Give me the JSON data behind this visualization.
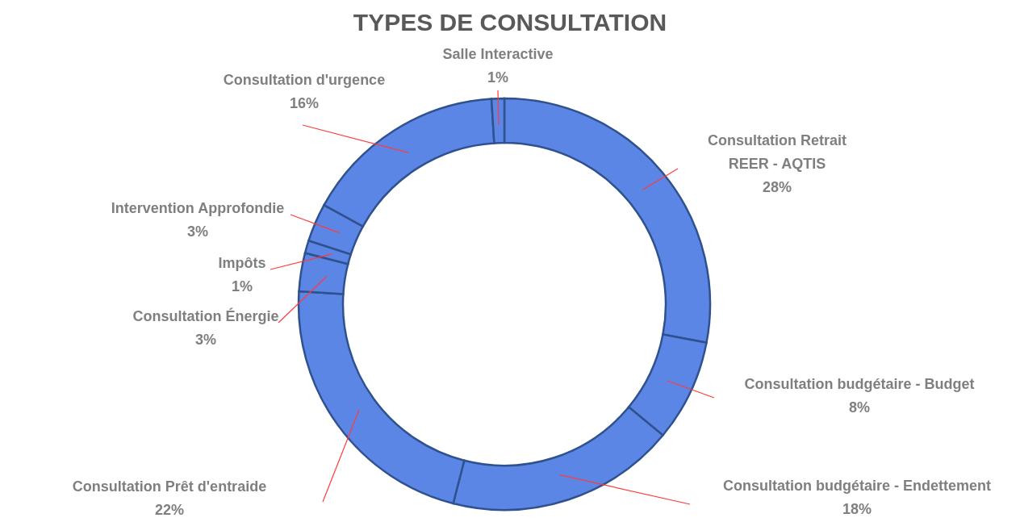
{
  "chart_data": {
    "type": "donut",
    "title": "TYPES DE CONSULTATION",
    "categories": [
      "Consultation Retrait REER - AQTIS",
      "Consultation budgétaire  - Budget",
      "Consultation budgétaire  - Endettement",
      "Consultation Prêt d'entraide",
      "Consultation Énergie",
      "Impôts",
      "Intervention Approfondie",
      "Consultation d'urgence",
      "Salle Interactive"
    ],
    "values": [
      28,
      8,
      18,
      22,
      3,
      1,
      3,
      16,
      1
    ],
    "value_labels": [
      "28%",
      "8%",
      "18%",
      "22%",
      "3%",
      "1%",
      "3%",
      "16%",
      "1%"
    ],
    "colors": [
      "#5b86e5",
      "#5b86e5",
      "#5b86e5",
      "#5b86e5",
      "#5b86e5",
      "#5b86e5",
      "#5b86e5",
      "#5b86e5",
      "#5b86e5"
    ]
  }
}
